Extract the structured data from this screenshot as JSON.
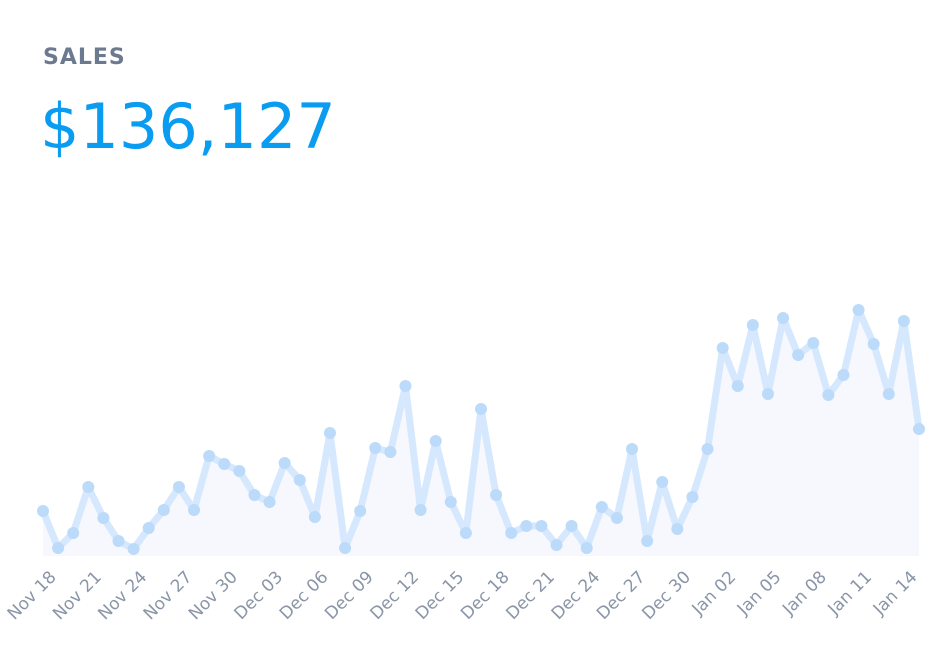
{
  "chart_data": {
    "type": "line",
    "title": "SALES",
    "subtitle": "$136,127",
    "categories": [
      "Nov 18",
      null,
      null,
      "Nov 21",
      null,
      null,
      "Nov 24",
      null,
      null,
      "Nov 27",
      null,
      null,
      "Nov 30",
      null,
      null,
      "Dec 03",
      null,
      null,
      "Dec 06",
      null,
      null,
      "Dec 09",
      null,
      null,
      "Dec 12",
      null,
      null,
      "Dec 15",
      null,
      null,
      "Dec 18",
      null,
      null,
      "Dec 21",
      null,
      null,
      "Dec 24",
      null,
      null,
      "Dec 27",
      null,
      null,
      "Dec 30",
      null,
      null,
      "Jan 02",
      null,
      null,
      "Jan 05",
      null,
      null,
      "Jan 08",
      null,
      null,
      "Jan 11",
      null,
      null,
      "Jan 14",
      null
    ],
    "values": [
      45,
      8,
      23,
      69,
      38,
      15,
      7,
      28,
      46,
      69,
      46,
      100,
      92,
      85,
      61,
      54,
      93,
      76,
      39,
      123,
      8,
      45,
      108,
      104,
      170,
      46,
      115,
      54,
      23,
      147,
      61,
      23,
      30,
      30,
      11,
      30,
      8,
      49,
      38,
      107,
      15,
      74,
      27,
      59,
      107,
      208,
      170,
      231,
      162,
      238,
      201,
      213,
      161,
      181,
      246,
      212,
      162,
      235,
      127
    ],
    "ylim": [
      0,
      300
    ],
    "color": "#d6e8fd",
    "marker_color": "#bcdaf9",
    "area_color": "#f6f8fe"
  }
}
